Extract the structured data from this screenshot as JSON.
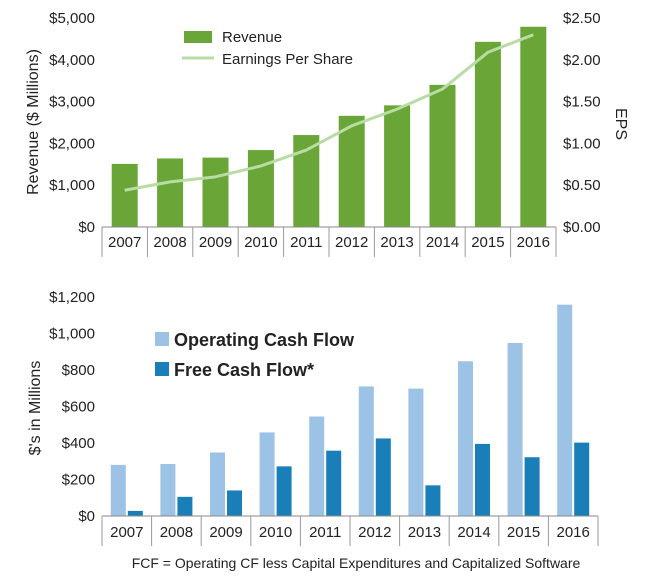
{
  "chart_data": [
    {
      "type": "bar",
      "categories": [
        "2007",
        "2008",
        "2009",
        "2010",
        "2011",
        "2012",
        "2013",
        "2014",
        "2015",
        "2016"
      ],
      "series": [
        {
          "name": "Revenue",
          "kind": "bar",
          "axis": "left",
          "values": [
            1510,
            1640,
            1660,
            1840,
            2200,
            2660,
            2910,
            3400,
            4430,
            4790
          ]
        },
        {
          "name": "Earnings Per Share",
          "kind": "line",
          "axis": "right",
          "values": [
            0.44,
            0.54,
            0.6,
            0.73,
            0.92,
            1.21,
            1.41,
            1.65,
            2.09,
            2.3
          ]
        }
      ],
      "ylabel": "Revenue ($ Millions)",
      "ylim": [
        0,
        5000
      ],
      "yticks": [
        "$0",
        "$1,000",
        "$2,000",
        "$3,000",
        "$4,000",
        "$5,000"
      ],
      "y2label": "EPS",
      "y2lim": [
        0,
        2.5
      ],
      "y2ticks": [
        "$0.00",
        "$0.50",
        "$1.00",
        "$1.50",
        "$2.00",
        "$2.50"
      ],
      "colors": {
        "bar": "#6aa637",
        "line": "#b9dca4"
      },
      "legend": "top-left"
    },
    {
      "type": "bar",
      "categories": [
        "2007",
        "2008",
        "2009",
        "2010",
        "2011",
        "2012",
        "2013",
        "2014",
        "2015",
        "2016"
      ],
      "series": [
        {
          "name": "Operating Cash Flow",
          "values": [
            280,
            285,
            348,
            458,
            545,
            710,
            698,
            848,
            948,
            1158
          ]
        },
        {
          "name": "Free Cash Flow*",
          "values": [
            28,
            105,
            140,
            272,
            358,
            425,
            168,
            395,
            322,
            402
          ]
        }
      ],
      "ylabel": "$'s in Millions",
      "ylim": [
        0,
        1200
      ],
      "yticks": [
        "$0",
        "$200",
        "$400",
        "$600",
        "$800",
        "$1,000",
        "$1,200"
      ],
      "colors": {
        "ocf": "#9cc2e5",
        "fcf": "#1a7fb8"
      },
      "legend": "top-left",
      "footnote": "FCF = Operating CF less Capital Expenditures and Capitalized Software"
    }
  ]
}
